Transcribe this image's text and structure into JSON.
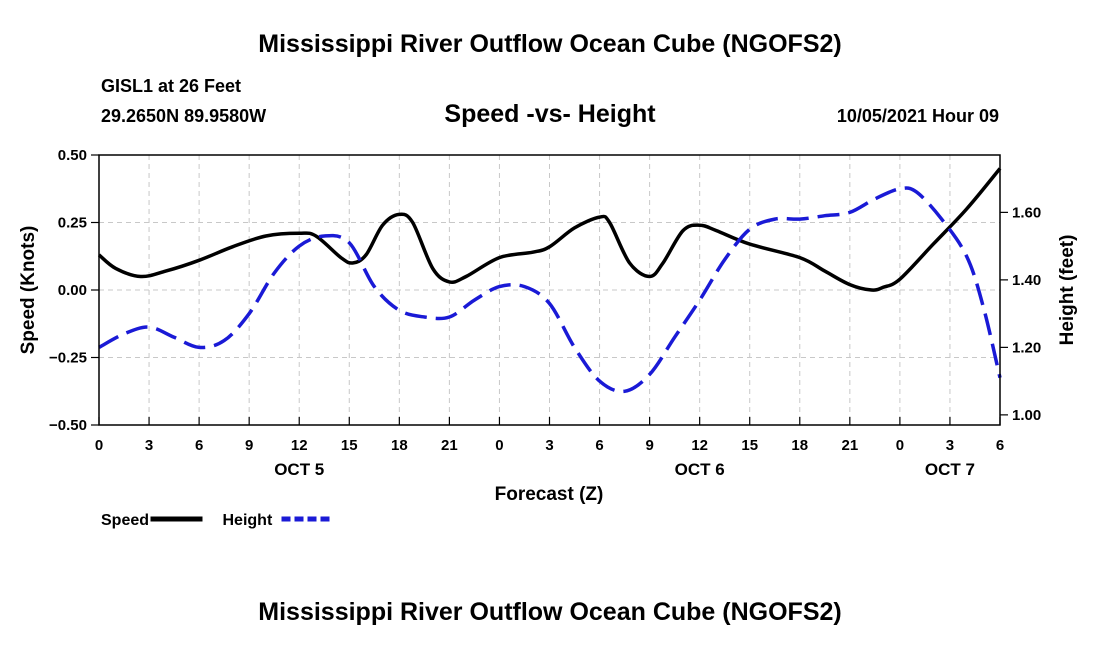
{
  "header": {
    "title": "Mississippi River Outflow Ocean Cube (NGOFS2)",
    "station": "GISL1 at 26 Feet",
    "coords": "29.2650N  89.9580W",
    "subtitle": "Speed -vs- Height",
    "datetime": "10/05/2021 Hour 09"
  },
  "footer": {
    "title": "Mississippi River Outflow Ocean Cube (NGOFS2)"
  },
  "chart_data": {
    "type": "line",
    "title": "Speed -vs- Height",
    "xlabel": "Forecast (Z)",
    "ylabel_left": "Speed (Knots)",
    "ylabel_right": "Height (feet)",
    "x_range_hours": [
      0,
      54
    ],
    "left_ylim": [
      -0.5,
      0.5
    ],
    "right_ylim": [
      0.97,
      1.77
    ],
    "grid": true,
    "x_ticks": [
      {
        "h": 0,
        "label": "0"
      },
      {
        "h": 3,
        "label": "3"
      },
      {
        "h": 6,
        "label": "6"
      },
      {
        "h": 9,
        "label": "9"
      },
      {
        "h": 12,
        "label": "12"
      },
      {
        "h": 15,
        "label": "15"
      },
      {
        "h": 18,
        "label": "18"
      },
      {
        "h": 21,
        "label": "21"
      },
      {
        "h": 24,
        "label": "0"
      },
      {
        "h": 27,
        "label": "3"
      },
      {
        "h": 30,
        "label": "6"
      },
      {
        "h": 33,
        "label": "9"
      },
      {
        "h": 36,
        "label": "12"
      },
      {
        "h": 39,
        "label": "15"
      },
      {
        "h": 42,
        "label": "18"
      },
      {
        "h": 45,
        "label": "21"
      },
      {
        "h": 48,
        "label": "0"
      },
      {
        "h": 51,
        "label": "3"
      },
      {
        "h": 54,
        "label": "6"
      }
    ],
    "day_labels": [
      {
        "h": 12,
        "label": "OCT 5"
      },
      {
        "h": 36,
        "label": "OCT 6"
      },
      {
        "h": 51,
        "label": "OCT 7"
      }
    ],
    "left_ticks": [
      {
        "v": 0.5,
        "label": "0.50"
      },
      {
        "v": 0.25,
        "label": "0.25"
      },
      {
        "v": 0.0,
        "label": "0.00"
      },
      {
        "v": -0.25,
        "label": "−0.25"
      },
      {
        "v": -0.5,
        "label": "−0.50"
      }
    ],
    "right_ticks": [
      {
        "v": 1.6,
        "label": "1.60"
      },
      {
        "v": 1.4,
        "label": "1.40"
      },
      {
        "v": 1.2,
        "label": "1.20"
      },
      {
        "v": 1.0,
        "label": "1.00"
      }
    ],
    "series": [
      {
        "name": "Speed",
        "axis": "left",
        "color": "#000000",
        "dash": "",
        "points": [
          [
            0,
            0.13
          ],
          [
            1,
            0.08
          ],
          [
            2.5,
            0.05
          ],
          [
            4,
            0.07
          ],
          [
            6,
            0.11
          ],
          [
            8,
            0.16
          ],
          [
            10,
            0.2
          ],
          [
            12,
            0.21
          ],
          [
            13,
            0.2
          ],
          [
            14.5,
            0.12
          ],
          [
            15.2,
            0.1
          ],
          [
            16,
            0.13
          ],
          [
            17,
            0.24
          ],
          [
            18,
            0.28
          ],
          [
            18.8,
            0.25
          ],
          [
            20,
            0.08
          ],
          [
            21,
            0.03
          ],
          [
            22,
            0.05
          ],
          [
            24,
            0.12
          ],
          [
            26,
            0.14
          ],
          [
            27,
            0.16
          ],
          [
            28.5,
            0.23
          ],
          [
            30,
            0.27
          ],
          [
            30.6,
            0.25
          ],
          [
            31.8,
            0.1
          ],
          [
            33,
            0.05
          ],
          [
            33.8,
            0.1
          ],
          [
            35,
            0.22
          ],
          [
            36,
            0.24
          ],
          [
            37,
            0.22
          ],
          [
            39,
            0.17
          ],
          [
            42,
            0.12
          ],
          [
            43.5,
            0.07
          ],
          [
            45,
            0.02
          ],
          [
            46.3,
            0.0
          ],
          [
            47,
            0.01
          ],
          [
            48,
            0.04
          ],
          [
            50,
            0.17
          ],
          [
            52,
            0.3
          ],
          [
            54,
            0.45
          ]
        ]
      },
      {
        "name": "Height",
        "axis": "right",
        "color": "#1a1ad6",
        "dash": "22,9",
        "points": [
          [
            0,
            1.2
          ],
          [
            1.5,
            1.24
          ],
          [
            3,
            1.26
          ],
          [
            4.5,
            1.23
          ],
          [
            6,
            1.2
          ],
          [
            7.5,
            1.22
          ],
          [
            9,
            1.3
          ],
          [
            10.5,
            1.42
          ],
          [
            12,
            1.5
          ],
          [
            13.5,
            1.53
          ],
          [
            15,
            1.51
          ],
          [
            16.5,
            1.38
          ],
          [
            18,
            1.31
          ],
          [
            19.5,
            1.29
          ],
          [
            21,
            1.29
          ],
          [
            22.5,
            1.34
          ],
          [
            24,
            1.38
          ],
          [
            25.5,
            1.38
          ],
          [
            27,
            1.33
          ],
          [
            28.5,
            1.2
          ],
          [
            30,
            1.1
          ],
          [
            31.5,
            1.07
          ],
          [
            33,
            1.12
          ],
          [
            34.5,
            1.23
          ],
          [
            36,
            1.34
          ],
          [
            37.5,
            1.46
          ],
          [
            39,
            1.55
          ],
          [
            40.5,
            1.58
          ],
          [
            42,
            1.58
          ],
          [
            43.5,
            1.59
          ],
          [
            45,
            1.6
          ],
          [
            46.5,
            1.64
          ],
          [
            48,
            1.67
          ],
          [
            49,
            1.66
          ],
          [
            50.5,
            1.58
          ],
          [
            52,
            1.47
          ],
          [
            53,
            1.32
          ],
          [
            54,
            1.11
          ]
        ]
      }
    ],
    "legend": [
      {
        "label": "Speed",
        "color": "#000000",
        "dash": ""
      },
      {
        "label": "Height",
        "color": "#1a1ad6",
        "dash": "9,4"
      }
    ]
  }
}
